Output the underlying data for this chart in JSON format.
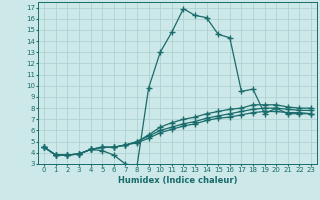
{
  "xlabel": "Humidex (Indice chaleur)",
  "xlim": [
    -0.5,
    23.5
  ],
  "ylim": [
    3,
    17.5
  ],
  "yticks": [
    3,
    4,
    5,
    6,
    7,
    8,
    9,
    10,
    11,
    12,
    13,
    14,
    15,
    16,
    17
  ],
  "xticks": [
    0,
    1,
    2,
    3,
    4,
    5,
    6,
    7,
    8,
    9,
    10,
    11,
    12,
    13,
    14,
    15,
    16,
    17,
    18,
    19,
    20,
    21,
    22,
    23
  ],
  "bg_color": "#cce8e8",
  "grid_color": "#aacece",
  "line_color": "#1a6b6b",
  "curve1_x": [
    0,
    1,
    2,
    3,
    4,
    5,
    6,
    7,
    8,
    9,
    10,
    11,
    12,
    13,
    14,
    15,
    16,
    17,
    18,
    19,
    20,
    21,
    22,
    23
  ],
  "curve1_y": [
    4.5,
    3.8,
    3.8,
    3.9,
    4.3,
    4.2,
    3.8,
    3.0,
    2.8,
    9.8,
    13.0,
    14.8,
    16.9,
    16.3,
    16.1,
    14.6,
    14.3,
    9.5,
    9.7,
    7.5,
    8.0,
    7.5,
    7.5,
    7.5
  ],
  "curve2_x": [
    0,
    1,
    2,
    3,
    4,
    5,
    6,
    7,
    8,
    9,
    10,
    11,
    12,
    13,
    14,
    15,
    16,
    17,
    18,
    19,
    20,
    21,
    22,
    23
  ],
  "curve2_y": [
    4.5,
    3.8,
    3.8,
    3.9,
    4.3,
    4.5,
    4.5,
    4.7,
    5.0,
    5.6,
    6.3,
    6.7,
    7.0,
    7.2,
    7.5,
    7.7,
    7.9,
    8.0,
    8.3,
    8.3,
    8.3,
    8.1,
    8.0,
    8.0
  ],
  "curve3_x": [
    0,
    1,
    2,
    3,
    4,
    5,
    6,
    7,
    8,
    9,
    10,
    11,
    12,
    13,
    14,
    15,
    16,
    17,
    18,
    19,
    20,
    21,
    22,
    23
  ],
  "curve3_y": [
    4.5,
    3.8,
    3.8,
    3.9,
    4.3,
    4.5,
    4.5,
    4.7,
    5.0,
    5.5,
    6.0,
    6.3,
    6.6,
    6.8,
    7.1,
    7.3,
    7.5,
    7.7,
    7.9,
    8.0,
    8.0,
    7.9,
    7.8,
    7.8
  ],
  "curve4_x": [
    0,
    1,
    2,
    3,
    4,
    5,
    6,
    7,
    8,
    9,
    10,
    11,
    12,
    13,
    14,
    15,
    16,
    17,
    18,
    19,
    20,
    21,
    22,
    23
  ],
  "curve4_y": [
    4.5,
    3.8,
    3.8,
    3.9,
    4.3,
    4.5,
    4.5,
    4.7,
    4.9,
    5.3,
    5.8,
    6.1,
    6.4,
    6.6,
    6.9,
    7.1,
    7.2,
    7.4,
    7.6,
    7.7,
    7.7,
    7.6,
    7.6,
    7.5
  ]
}
